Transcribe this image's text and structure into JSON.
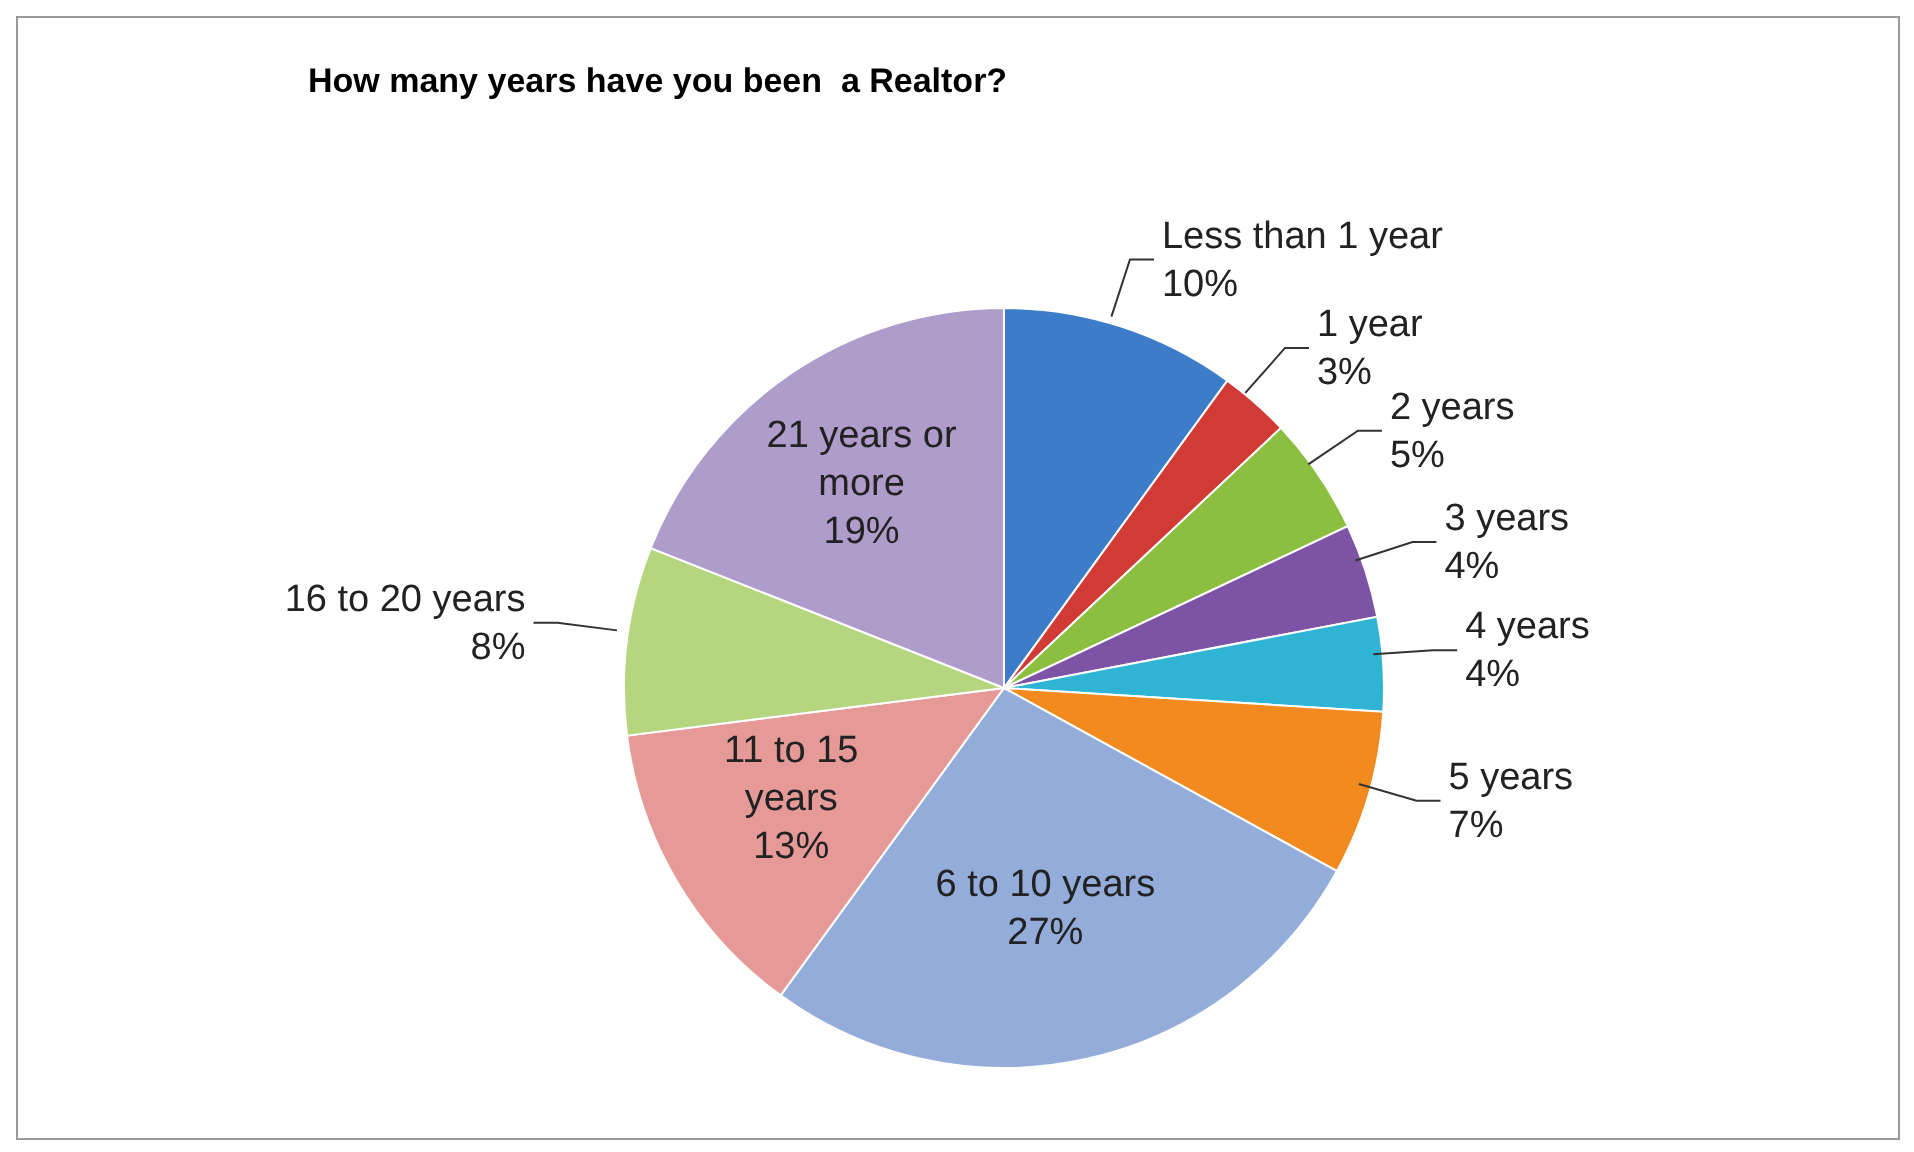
{
  "chart_data": {
    "type": "pie",
    "title": "How many years have you been  a Realtor?",
    "categories": [
      "Less than 1 year",
      "1 year",
      "2 years",
      "3 years",
      "4 years",
      "5 years",
      "6 to 10 years",
      "11 to 15 years",
      "16 to 20 years",
      "21 years or more"
    ],
    "values": [
      10,
      3,
      5,
      4,
      4,
      7,
      27,
      13,
      8,
      19
    ],
    "value_labels": [
      "10%",
      "3%",
      "5%",
      "4%",
      "4%",
      "7%",
      "27%",
      "13%",
      "8%",
      "19%"
    ],
    "colors": [
      "#3d7cc9",
      "#d23a35",
      "#8cbf3f",
      "#7d53a6",
      "#2fb4d4",
      "#f38a1f",
      "#93acd9",
      "#e59a98",
      "#b5d57f",
      "#ae9ccb"
    ]
  }
}
